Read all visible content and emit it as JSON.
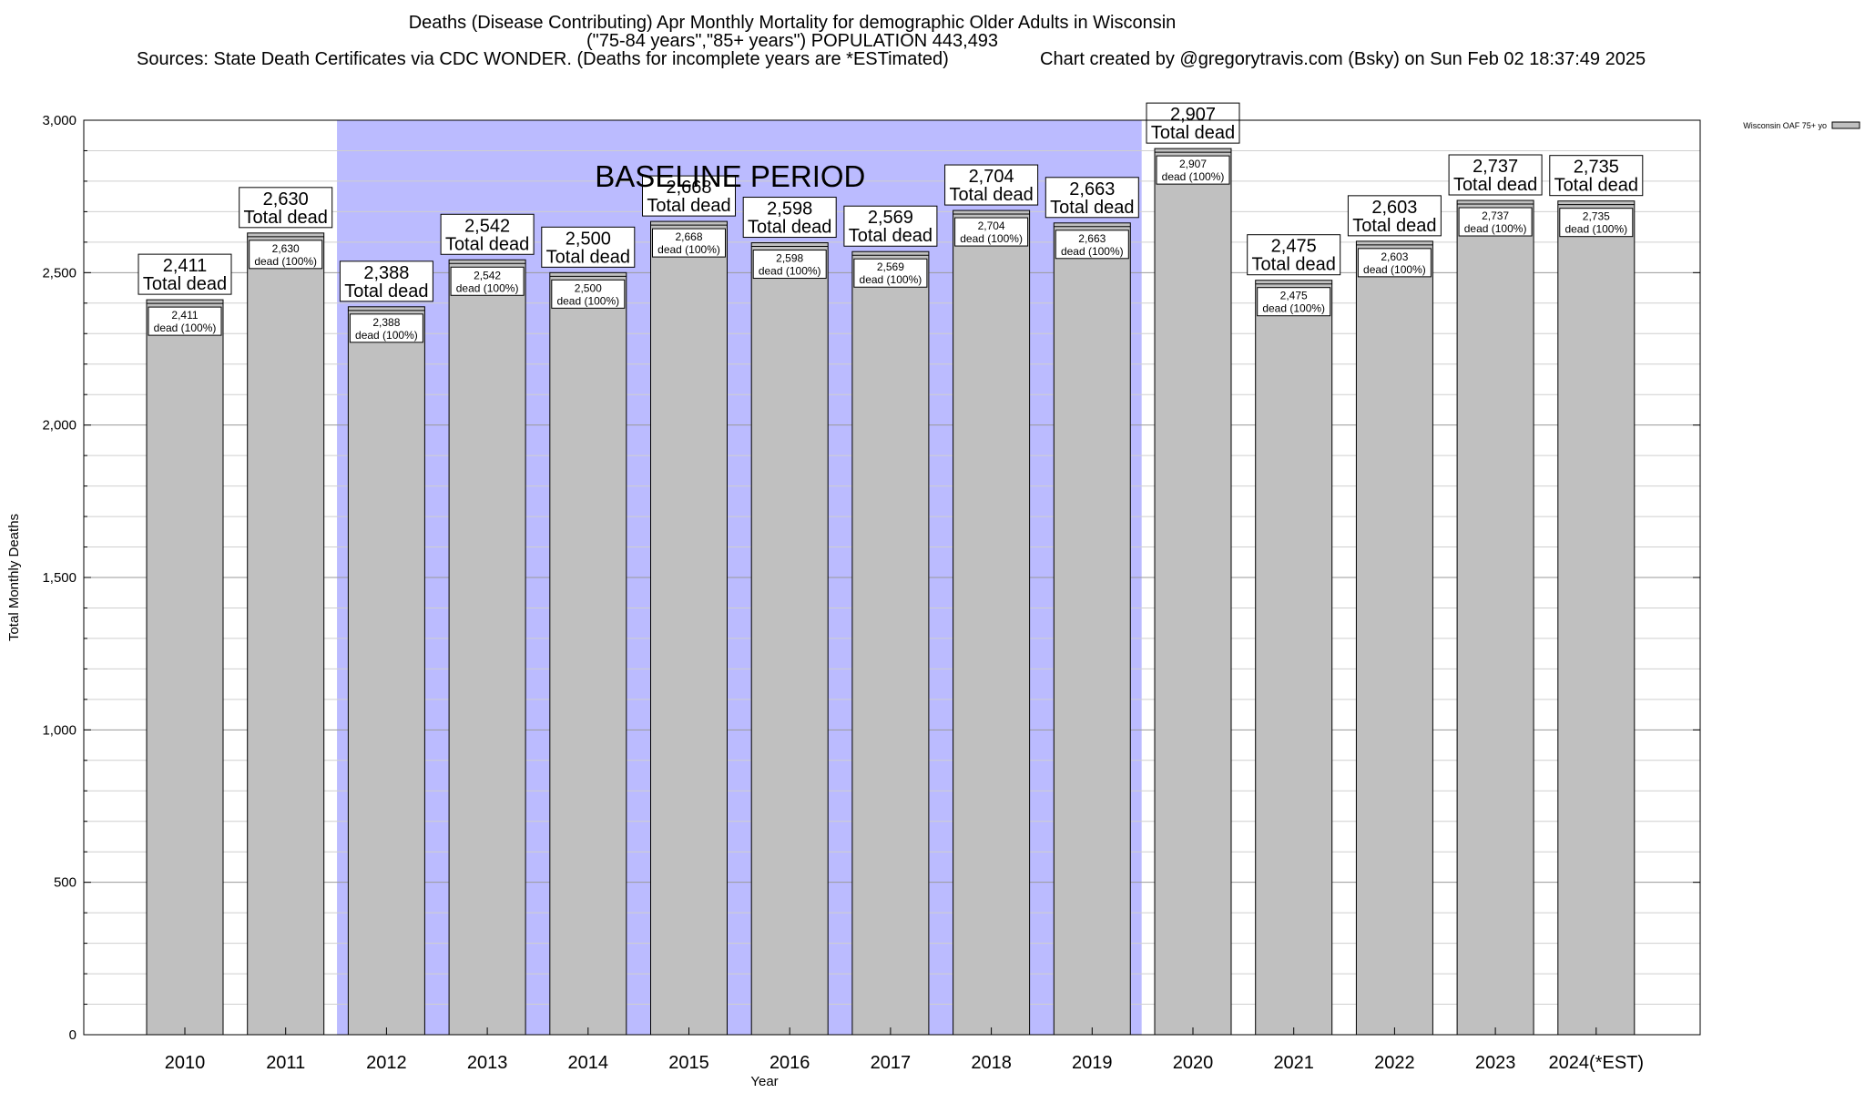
{
  "header": {
    "title": "Deaths (Disease Contributing) Apr Monthly Mortality for demographic Older Adults in Wisconsin",
    "subtitle": "(\"75-84 years\",\"85+ years\") POPULATION 443,493",
    "sources": "Sources: State Death Certificates via CDC WONDER. (Deaths for incomplete years are *ESTimated)",
    "credit": "Chart created by @gregorytravis.com (Bsky) on Sun Feb 02 18:37:49 2025"
  },
  "chart_data": {
    "type": "bar",
    "categories": [
      "2010",
      "2011",
      "2012",
      "2013",
      "2014",
      "2015",
      "2016",
      "2017",
      "2018",
      "2019",
      "2020",
      "2021",
      "2022",
      "2023",
      "2024(*EST)"
    ],
    "value_labels": [
      "2,411",
      "2,630",
      "2,388",
      "2,542",
      "2,500",
      "2,668",
      "2,598",
      "2,569",
      "2,704",
      "2,663",
      "2,907",
      "2,475",
      "2,603",
      "2,737",
      "2,735"
    ],
    "series": [
      {
        "name": "Wisconsin OAF 75+ yo",
        "values": [
          2411,
          2630,
          2388,
          2542,
          2500,
          2668,
          2598,
          2569,
          2704,
          2663,
          2907,
          2475,
          2603,
          2737,
          2735
        ],
        "color": "#c0c0c0"
      }
    ],
    "bar_label_suffix": "Total dead",
    "inner_label_suffix": "dead (100%)",
    "xlabel": "Year",
    "ylabel": "Total Monthly Deaths",
    "ylim": [
      0,
      3000
    ],
    "yticks": [
      0,
      500,
      1000,
      1500,
      2000,
      2500,
      3000
    ],
    "ytick_labels": [
      "0",
      "500",
      "1,000",
      "1,500",
      "2,000",
      "2,500",
      "3,000"
    ],
    "minor_step": 100,
    "grid": true,
    "legend_position": "top-right",
    "baseline": {
      "label": "BASELINE PERIOD",
      "from": "2012",
      "to": "2019",
      "color": "#bbbbff"
    }
  }
}
